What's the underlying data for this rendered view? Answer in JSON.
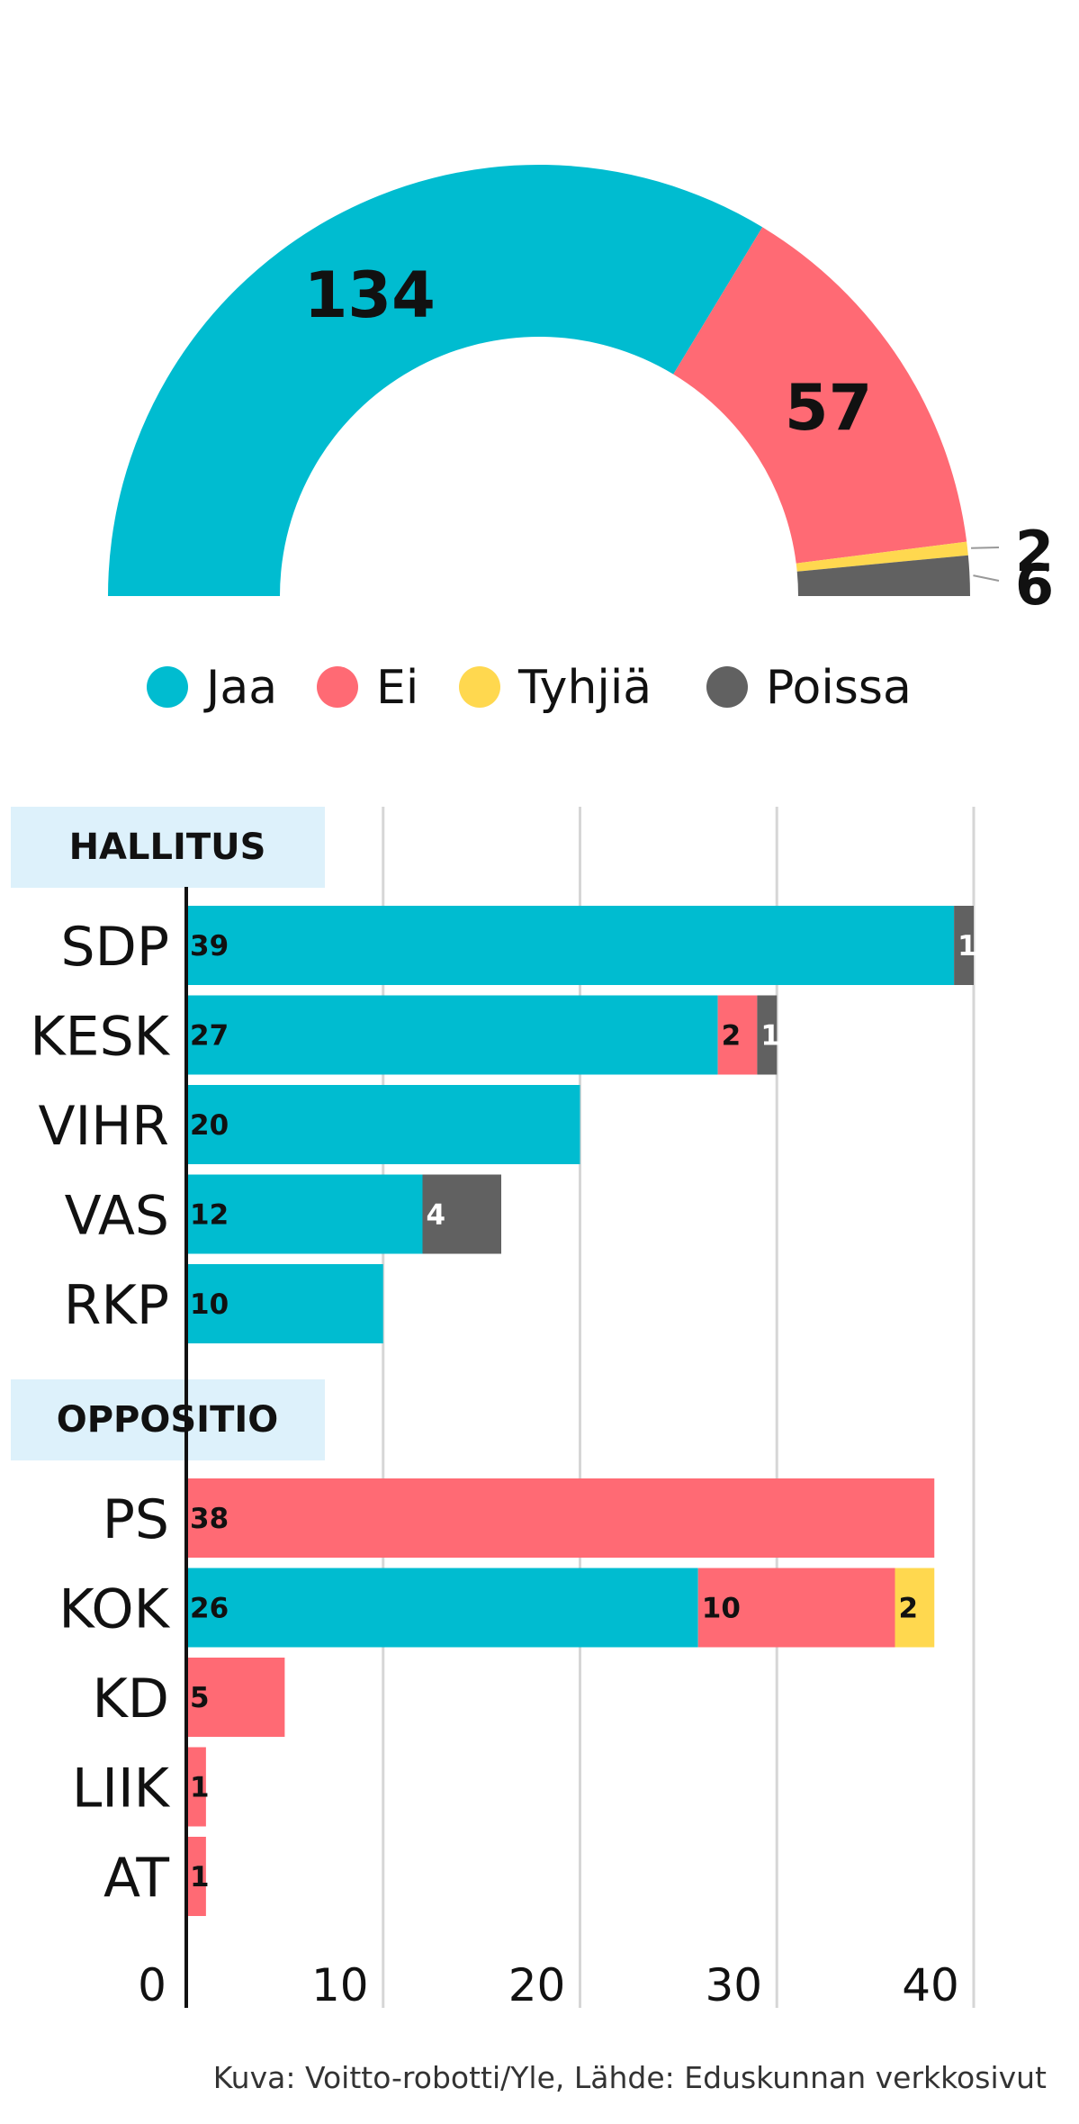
{
  "colors": {
    "jaa": "#00bcd0",
    "ei": "#ff6a74",
    "tyhjia": "#ffd84f",
    "poissa": "#616161",
    "group_bg": "#ddf1fb",
    "grid": "#d6d6d6",
    "axis": "#111111"
  },
  "chart_data": [
    {
      "type": "pie",
      "variant": "half-donut",
      "slices": [
        {
          "label": "Jaa",
          "value": 134,
          "color_key": "jaa"
        },
        {
          "label": "Ei",
          "value": 57,
          "color_key": "ei"
        },
        {
          "label": "Tyhjiä",
          "value": 2,
          "color_key": "tyhjia"
        },
        {
          "label": "Poissa",
          "value": 6,
          "color_key": "poissa"
        }
      ],
      "legend": [
        {
          "label": "Jaa",
          "color_key": "jaa"
        },
        {
          "label": "Ei",
          "color_key": "ei"
        },
        {
          "label": "Tyhjiä",
          "color_key": "tyhjia"
        },
        {
          "label": "Poissa",
          "color_key": "poissa"
        }
      ],
      "legend_placement": "bottom"
    },
    {
      "type": "bar",
      "orientation": "horizontal",
      "stacked": true,
      "xlim": [
        0,
        40
      ],
      "xticks": [
        0,
        10,
        20,
        30,
        40
      ],
      "grid": true,
      "series_keys": [
        "jaa",
        "ei",
        "tyhjia",
        "poissa"
      ],
      "groups": [
        {
          "label": "HALLITUS",
          "rows": [
            {
              "party": "SDP",
              "jaa": 39,
              "ei": 0,
              "tyhjia": 0,
              "poissa": 1
            },
            {
              "party": "KESK",
              "jaa": 27,
              "ei": 2,
              "tyhjia": 0,
              "poissa": 1
            },
            {
              "party": "VIHR",
              "jaa": 20,
              "ei": 0,
              "tyhjia": 0,
              "poissa": 0
            },
            {
              "party": "VAS",
              "jaa": 12,
              "ei": 0,
              "tyhjia": 0,
              "poissa": 4
            },
            {
              "party": "RKP",
              "jaa": 10,
              "ei": 0,
              "tyhjia": 0,
              "poissa": 0
            }
          ]
        },
        {
          "label": "OPPOSITIO",
          "rows": [
            {
              "party": "PS",
              "jaa": 0,
              "ei": 38,
              "tyhjia": 0,
              "poissa": 0
            },
            {
              "party": "KOK",
              "jaa": 26,
              "ei": 10,
              "tyhjia": 2,
              "poissa": 0
            },
            {
              "party": "KD",
              "jaa": 0,
              "ei": 5,
              "tyhjia": 0,
              "poissa": 0
            },
            {
              "party": "LIIK",
              "jaa": 0,
              "ei": 1,
              "tyhjia": 0,
              "poissa": 0
            },
            {
              "party": "AT",
              "jaa": 0,
              "ei": 1,
              "tyhjia": 0,
              "poissa": 0
            }
          ]
        }
      ]
    }
  ],
  "footer": {
    "credit": "Kuva: Voitto-robotti/Yle, Lähde: Eduskunnan verkkosivut"
  }
}
